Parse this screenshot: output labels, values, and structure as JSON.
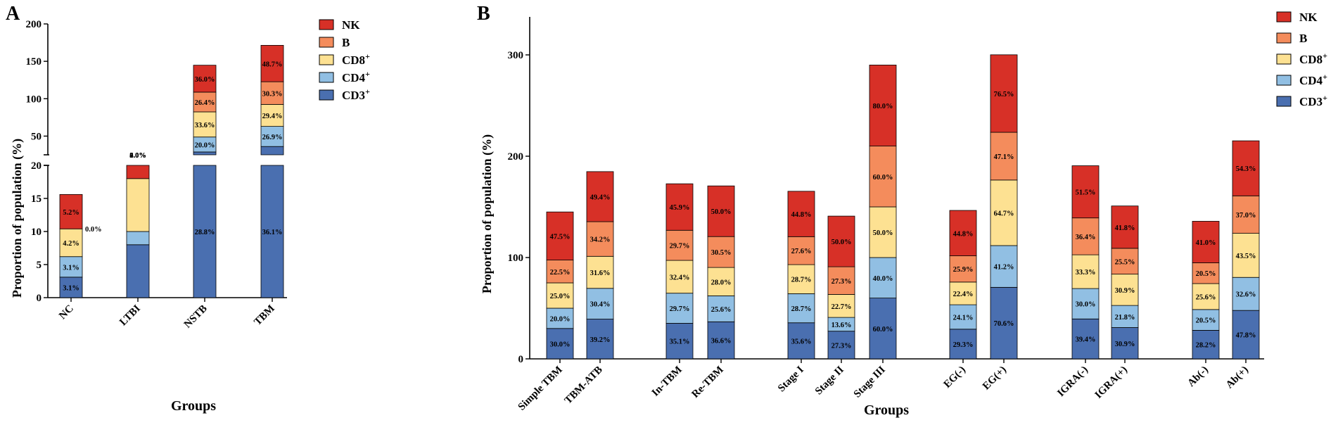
{
  "colors": {
    "NK": "#d73027",
    "B": "#f48c5c",
    "CD8": "#fde192",
    "CD4": "#91bfe3",
    "CD3": "#4a6fb0"
  },
  "chart_data": [
    {
      "panel": "A",
      "type": "bar",
      "stacked": true,
      "xlabel": "Groups",
      "ylabel": "Proportion of population (%)",
      "axis_break": true,
      "lower_ylim": [
        0,
        20
      ],
      "lower_ticks": [
        "0",
        "5",
        "10",
        "15",
        "20"
      ],
      "upper_ylim": [
        25,
        200
      ],
      "upper_ticks": [
        "50",
        "100",
        "150",
        "200"
      ],
      "legend": [
        "NK",
        "B",
        "CD8",
        "CD4",
        "CD3"
      ],
      "legend_labels": {
        "NK": "NK",
        "B": "B",
        "CD8": "CD8",
        "CD4": "CD4",
        "CD3": "CD3"
      },
      "legend_sup": "+",
      "categories": [
        "NC",
        "LTBI",
        "NSTB",
        "TBM"
      ],
      "series": [
        {
          "name": "CD3",
          "values": [
            3.1,
            8.0,
            28.8,
            36.1
          ],
          "labels": [
            "3.1%",
            "8.0%",
            "28.8%",
            "36.1%"
          ]
        },
        {
          "name": "CD4",
          "values": [
            3.1,
            2.0,
            20.0,
            26.9
          ],
          "labels": [
            "3.1%",
            "2.0%",
            "20.0%",
            "26.9%"
          ]
        },
        {
          "name": "CD8",
          "values": [
            4.2,
            8.0,
            33.6,
            29.4
          ],
          "labels": [
            "4.2%",
            "8.0%",
            "33.6%",
            "29.4%"
          ]
        },
        {
          "name": "B",
          "values": [
            0.0,
            0.0,
            26.4,
            30.3
          ],
          "labels": [
            "0.0%",
            "0.0%",
            "26.4%",
            "30.3%"
          ]
        },
        {
          "name": "NK",
          "values": [
            5.2,
            4.0,
            36.0,
            48.7
          ],
          "labels": [
            "5.2%",
            "4.0%",
            "36.0%",
            "48.7%"
          ]
        }
      ]
    },
    {
      "panel": "B",
      "type": "bar",
      "stacked": true,
      "xlabel": "Groups",
      "ylabel": "Proportion of population (%)",
      "ylim": [
        0,
        350
      ],
      "yticks": [
        "0",
        "100",
        "200",
        "300"
      ],
      "legend": [
        "NK",
        "B",
        "CD8",
        "CD4",
        "CD3"
      ],
      "legend_labels": {
        "NK": "NK",
        "B": "B",
        "CD8": "CD8",
        "CD4": "CD4",
        "CD3": "CD3"
      },
      "legend_sup": "+",
      "categories": [
        "Simple TBM",
        "TBM-ATB",
        "In-TBM",
        "Re-TBM",
        "Stage I",
        "Stage II",
        "Stage III",
        "EG(-)",
        "EG(+)",
        "IGRA(-)",
        "IGRA(+)",
        "Ab(-)",
        "Ab(+)"
      ],
      "series": [
        {
          "name": "CD3",
          "values": [
            30.0,
            39.2,
            35.1,
            36.6,
            35.6,
            27.3,
            60.0,
            29.3,
            70.6,
            39.4,
            30.9,
            28.2,
            47.8
          ],
          "labels": [
            "30.0%",
            "39.2%",
            "35.1%",
            "36.6%",
            "35.6%",
            "27.3%",
            "60.0%",
            "29.3%",
            "70.6%",
            "39.4%",
            "30.9%",
            "28.2%",
            "47.8%"
          ]
        },
        {
          "name": "CD4",
          "values": [
            20.0,
            30.4,
            29.7,
            25.6,
            28.7,
            13.6,
            40.0,
            24.1,
            41.2,
            30.0,
            21.8,
            20.5,
            32.6
          ],
          "labels": [
            "20.0%",
            "30.4%",
            "29.7%",
            "25.6%",
            "28.7%",
            "13.6%",
            "40.0%",
            "24.1%",
            "41.2%",
            "30.0%",
            "21.8%",
            "20.5%",
            "32.6%"
          ]
        },
        {
          "name": "CD8",
          "values": [
            25.0,
            31.6,
            32.4,
            28.0,
            28.7,
            22.7,
            50.0,
            22.4,
            64.7,
            33.3,
            30.9,
            25.6,
            43.5
          ],
          "labels": [
            "25.0%",
            "31.6%",
            "32.4%",
            "28.0%",
            "28.7%",
            "22.7%",
            "50.0%",
            "22.4%",
            "64.7%",
            "33.3%",
            "30.9%",
            "25.6%",
            "43.5%"
          ]
        },
        {
          "name": "B",
          "values": [
            22.5,
            34.2,
            29.7,
            30.5,
            27.6,
            27.3,
            60.0,
            25.9,
            47.1,
            36.4,
            25.5,
            20.5,
            37.0
          ],
          "labels": [
            "22.5%",
            "34.2%",
            "29.7%",
            "30.5%",
            "27.6%",
            "27.3%",
            "60.0%",
            "25.9%",
            "47.1%",
            "36.4%",
            "25.5%",
            "20.5%",
            "37.0%"
          ]
        },
        {
          "name": "NK",
          "values": [
            47.5,
            49.4,
            45.9,
            50.0,
            44.8,
            50.0,
            80.0,
            44.8,
            76.5,
            51.5,
            41.8,
            41.0,
            54.3
          ],
          "labels": [
            "47.5%",
            "49.4%",
            "45.9%",
            "50.0%",
            "44.8%",
            "50.0%",
            "80.0%",
            "44.8%",
            "76.5%",
            "51.5%",
            "41.8%",
            "41.0%",
            "54.3%"
          ]
        }
      ]
    }
  ]
}
